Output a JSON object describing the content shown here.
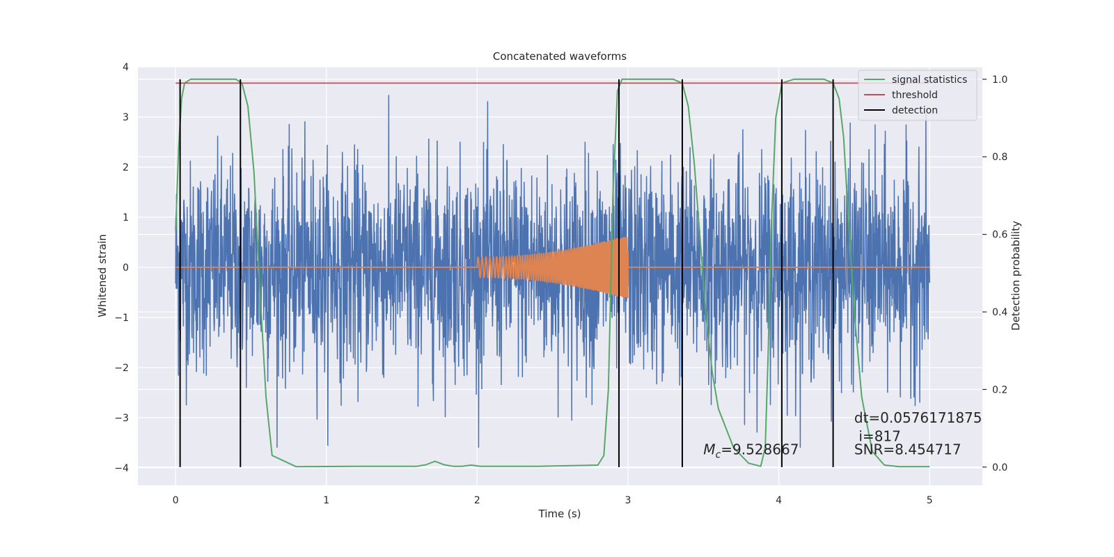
{
  "chart_data": {
    "type": "line",
    "title": "Concatenated waveforms",
    "xlabel": "Time (s)",
    "ylabel": "Whitened strain",
    "ylabel_right": "Detection probability",
    "xlim": [
      -0.25,
      5.35
    ],
    "ylim": [
      -4.35,
      4.0
    ],
    "ylim_right": [
      -0.047,
      1.032
    ],
    "x_ticks": [
      0,
      1,
      2,
      3,
      4,
      5
    ],
    "x_tick_labels": [
      "0",
      "1",
      "2",
      "3",
      "4",
      "5"
    ],
    "y_ticks": [
      -4,
      -3,
      -2,
      -1,
      0,
      1,
      2,
      3,
      4
    ],
    "y_tick_labels": [
      "−4",
      "−3",
      "−2",
      "−1",
      "0",
      "1",
      "2",
      "3",
      "4"
    ],
    "y_right_ticks": [
      0.0,
      0.2,
      0.4,
      0.6,
      0.8,
      1.0
    ],
    "y_right_tick_labels": [
      "0.0",
      "0.2",
      "0.4",
      "0.6",
      "0.8",
      "1.0"
    ],
    "grid": true,
    "legend_position": "top-right",
    "series": [
      {
        "key": "strain",
        "color": "#4c72b0",
        "axis": "left",
        "x_range": [
          0,
          5
        ],
        "amplitude": 3.6
      },
      {
        "key": "template",
        "color": "#dd8452",
        "axis": "left",
        "x_range": [
          2,
          3
        ],
        "amplitude_start": 0.2,
        "amplitude_end": 0.65
      },
      {
        "key": "stat",
        "name": "signal statistics",
        "color": "#55a868",
        "axis": "right",
        "x": [
          0,
          0.02,
          0.04,
          0.06,
          0.1,
          0.2,
          0.4,
          0.44,
          0.48,
          0.52,
          0.56,
          0.6,
          0.64,
          0.8,
          1.2,
          1.6,
          1.66,
          1.72,
          1.78,
          1.84,
          1.9,
          1.96,
          2.02,
          2.4,
          2.8,
          2.84,
          2.87,
          2.9,
          2.93,
          2.96,
          3.0,
          3.1,
          3.3,
          3.36,
          3.4,
          3.44,
          3.48,
          3.52,
          3.56,
          3.6,
          3.7,
          3.8,
          3.88,
          3.91,
          3.93,
          3.95,
          3.98,
          4.02,
          4.1,
          4.3,
          4.36,
          4.4,
          4.43,
          4.46,
          4.5,
          4.55,
          4.62,
          4.7,
          4.8,
          5.0
        ],
        "values": [
          0.61,
          0.82,
          0.95,
          0.99,
          1.0,
          1.0,
          1.0,
          0.99,
          0.93,
          0.76,
          0.45,
          0.18,
          0.03,
          0.001,
          0.002,
          0.002,
          0.006,
          0.015,
          0.006,
          0.002,
          0.002,
          0.005,
          0.002,
          0.002,
          0.005,
          0.03,
          0.2,
          0.7,
          0.97,
          1.0,
          1.0,
          1.0,
          1.0,
          0.99,
          0.93,
          0.78,
          0.58,
          0.38,
          0.24,
          0.15,
          0.05,
          0.01,
          0.002,
          0.05,
          0.3,
          0.62,
          0.9,
          0.99,
          1.0,
          1.0,
          0.99,
          0.95,
          0.85,
          0.65,
          0.4,
          0.18,
          0.04,
          0.005,
          0.001,
          0.001
        ]
      },
      {
        "key": "threshold",
        "name": "threshold",
        "color": "#c44e52",
        "axis": "right",
        "x": [
          0,
          5
        ],
        "values": [
          0.99,
          0.99
        ]
      },
      {
        "key": "detection",
        "name": "detection",
        "color": "#000000",
        "axis": "right",
        "vlines": [
          0.03,
          0.43,
          2.94,
          3.36,
          4.02,
          4.36
        ],
        "values_span": [
          0.0,
          1.0
        ]
      }
    ],
    "annotations": [
      {
        "key": "mc",
        "text": "=9.528667",
        "symbol": "M",
        "subscript": "c",
        "x": 3.5,
        "y": -3.73
      },
      {
        "key": "snr",
        "text": "SNR=8.454717",
        "x": 4.5,
        "y": -3.73
      },
      {
        "key": "idx",
        "text": "i=817",
        "x": 4.53,
        "y": -3.47
      },
      {
        "key": "dt",
        "text": "dt=0.0576171875",
        "x": 4.5,
        "y": -3.1
      }
    ]
  }
}
